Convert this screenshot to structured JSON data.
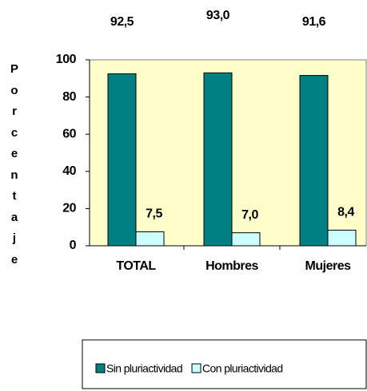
{
  "chart_data": {
    "type": "bar",
    "y_label": "Porcentaje",
    "categories": [
      "TOTAL",
      "Hombres",
      "Mujeres"
    ],
    "series": [
      {
        "name": "Sin pluriactividad",
        "color": "#008080",
        "values": [
          92.5,
          93.0,
          91.6
        ],
        "value_labels": [
          "92,5",
          "93,0",
          "91,6"
        ]
      },
      {
        "name": "Con pluriactividad",
        "color": "#ccffff",
        "values": [
          7.5,
          7.0,
          8.4
        ],
        "value_labels": [
          "7,5",
          "7,0",
          "8,4"
        ]
      }
    ],
    "ylim": [
      0,
      100
    ],
    "yticks": [
      0,
      20,
      40,
      60,
      80,
      100
    ],
    "grid": false,
    "legend": "bottom"
  }
}
